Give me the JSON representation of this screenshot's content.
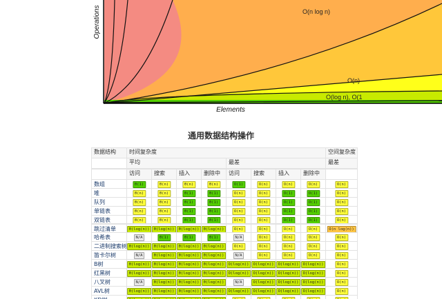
{
  "chart": {
    "y_label": "Operations",
    "x_label": "Elements",
    "curve_labels": [
      "O(n log n)",
      "O(n)",
      "O(log n), O(1"
    ]
  },
  "section_title": "通用数据结构操作",
  "table": {
    "header": [
      [
        "数据结构",
        "时间复杂度",
        "空间复杂度"
      ],
      [
        "平均",
        "最差",
        "最差"
      ],
      [
        "访问",
        "搜索",
        "插入",
        "删除中",
        "访问",
        "搜索",
        "插入",
        "删除中"
      ]
    ],
    "rows": [
      {
        "name": "数组",
        "cells": [
          "Θ(1)",
          "Θ(n)",
          "Θ(n)",
          "Θ(n)",
          "O(1)",
          "O(n)",
          "O(n)",
          "O(n)",
          "O(n)"
        ],
        "colors": [
          "#53d000",
          "#ffff3a",
          "#ffff3a",
          "#ffff3a",
          "#53d000",
          "#ffff3a",
          "#ffff3a",
          "#ffff3a",
          "#ffff3a"
        ]
      },
      {
        "name": "堆",
        "cells": [
          "Θ(n)",
          "Θ(n)",
          "Θ(1)",
          "Θ(1)",
          "O(n)",
          "O(n)",
          "O(1)",
          "O(1)",
          "O(n)"
        ],
        "colors": [
          "#ffff3a",
          "#ffff3a",
          "#53d000",
          "#53d000",
          "#ffff3a",
          "#ffff3a",
          "#53d000",
          "#53d000",
          "#ffff3a"
        ]
      },
      {
        "name": "队列",
        "cells": [
          "Θ(n)",
          "Θ(n)",
          "Θ(1)",
          "Θ(1)",
          "O(n)",
          "O(n)",
          "O(1)",
          "O(1)",
          "O(n)"
        ],
        "colors": [
          "#ffff3a",
          "#ffff3a",
          "#53d000",
          "#53d000",
          "#ffff3a",
          "#ffff3a",
          "#53d000",
          "#53d000",
          "#ffff3a"
        ]
      },
      {
        "name": "单链表",
        "cells": [
          "Θ(n)",
          "Θ(n)",
          "Θ(1)",
          "Θ(1)",
          "O(n)",
          "O(n)",
          "O(1)",
          "O(1)",
          "O(n)"
        ],
        "colors": [
          "#ffff3a",
          "#ffff3a",
          "#53d000",
          "#53d000",
          "#ffff3a",
          "#ffff3a",
          "#53d000",
          "#53d000",
          "#ffff3a"
        ]
      },
      {
        "name": "双链表",
        "cells": [
          "Θ(n)",
          "Θ(n)",
          "Θ(1)",
          "Θ(1)",
          "O(n)",
          "O(n)",
          "O(1)",
          "O(1)",
          "O(n)"
        ],
        "colors": [
          "#ffff3a",
          "#ffff3a",
          "#53d000",
          "#53d000",
          "#ffff3a",
          "#ffff3a",
          "#53d000",
          "#53d000",
          "#ffff3a"
        ]
      },
      {
        "name": "跳过清单",
        "cells": [
          "Θ(log(n))",
          "Θ(log(n))",
          "Θ(log(n))",
          "Θ(log(n))",
          "O(n)",
          "O(n)",
          "O(n)",
          "O(n)",
          "O(n log(n))"
        ],
        "colors": [
          "#c8ea00",
          "#c8ea00",
          "#c8ea00",
          "#c8ea00",
          "#ffff3a",
          "#ffff3a",
          "#ffff3a",
          "#ffff3a",
          "#ffc543"
        ]
      },
      {
        "name": "哈希表",
        "cells": [
          "N/A",
          "Θ(1)",
          "Θ(1)",
          "Θ(1)",
          "N/A",
          "O(n)",
          "O(n)",
          "O(n)",
          "O(n)"
        ],
        "colors": [
          "#e8e8e8",
          "#53d000",
          "#53d000",
          "#53d000",
          "#e8e8e8",
          "#ffff3a",
          "#ffff3a",
          "#ffff3a",
          "#ffff3a"
        ]
      },
      {
        "name": "二进制搜索树",
        "cells": [
          "Θ(log(n))",
          "Θ(log(n))",
          "Θ(log(n))",
          "Θ(log(n))",
          "O(n)",
          "O(n)",
          "O(n)",
          "O(n)",
          "O(n)"
        ],
        "colors": [
          "#c8ea00",
          "#c8ea00",
          "#c8ea00",
          "#c8ea00",
          "#ffff3a",
          "#ffff3a",
          "#ffff3a",
          "#ffff3a",
          "#ffff3a"
        ]
      },
      {
        "name": "笛卡尔树",
        "cells": [
          "N/A",
          "Θ(log(n))",
          "Θ(log(n))",
          "Θ(log(n))",
          "N/A",
          "O(n)",
          "O(n)",
          "O(n)",
          "O(n)"
        ],
        "colors": [
          "#e8e8e8",
          "#c8ea00",
          "#c8ea00",
          "#c8ea00",
          "#e8e8e8",
          "#ffff3a",
          "#ffff3a",
          "#ffff3a",
          "#ffff3a"
        ]
      },
      {
        "name": "B树",
        "cells": [
          "Θ(log(n))",
          "Θ(log(n))",
          "Θ(log(n))",
          "Θ(log(n))",
          "O(log(n))",
          "O(log(n))",
          "O(log(n))",
          "O(log(n))",
          "O(n)"
        ],
        "colors": [
          "#c8ea00",
          "#c8ea00",
          "#c8ea00",
          "#c8ea00",
          "#c8ea00",
          "#c8ea00",
          "#c8ea00",
          "#c8ea00",
          "#ffff3a"
        ]
      },
      {
        "name": "红黑树",
        "cells": [
          "Θ(log(n))",
          "Θ(log(n))",
          "Θ(log(n))",
          "Θ(log(n))",
          "O(log(n))",
          "O(log(n))",
          "O(log(n))",
          "O(log(n))",
          "O(n)"
        ],
        "colors": [
          "#c8ea00",
          "#c8ea00",
          "#c8ea00",
          "#c8ea00",
          "#c8ea00",
          "#c8ea00",
          "#c8ea00",
          "#c8ea00",
          "#ffff3a"
        ]
      },
      {
        "name": "八叉树",
        "cells": [
          "N/A",
          "Θ(log(n))",
          "Θ(log(n))",
          "Θ(log(n))",
          "N/A",
          "O(log(n))",
          "O(log(n))",
          "O(log(n))",
          "O(n)"
        ],
        "colors": [
          "#e8e8e8",
          "#c8ea00",
          "#c8ea00",
          "#c8ea00",
          "#e8e8e8",
          "#c8ea00",
          "#c8ea00",
          "#c8ea00",
          "#ffff3a"
        ]
      },
      {
        "name": "AVL树",
        "cells": [
          "Θ(log(n))",
          "Θ(log(n))",
          "Θ(log(n))",
          "Θ(log(n))",
          "O(log(n))",
          "O(log(n))",
          "O(log(n))",
          "O(log(n))",
          "O(n)"
        ],
        "colors": [
          "#c8ea00",
          "#c8ea00",
          "#c8ea00",
          "#c8ea00",
          "#c8ea00",
          "#c8ea00",
          "#c8ea00",
          "#c8ea00",
          "#ffff3a"
        ]
      },
      {
        "name": "KD树",
        "cells": [
          "Θ(log(n))",
          "Θ(log(n))",
          "Θ(log(n))",
          "Θ(log(n))",
          "O(n)",
          "O(n)",
          "O(n)",
          "O(n)",
          "O(n)"
        ],
        "colors": [
          "#c8ea00",
          "#c8ea00",
          "#c8ea00",
          "#c8ea00",
          "#ffff3a",
          "#ffff3a",
          "#ffff3a",
          "#ffff3a",
          "#ffff3a"
        ]
      }
    ]
  }
}
